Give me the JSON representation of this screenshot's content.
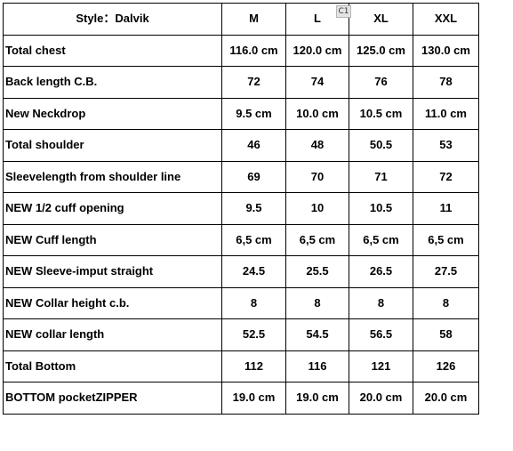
{
  "header": {
    "style_label": "Style：Dalvik",
    "sizes": [
      "M",
      "L",
      "XL",
      "XXL"
    ],
    "comment_marker": "C1"
  },
  "rows": [
    {
      "label": "Total chest",
      "values": [
        "116.0 cm",
        "120.0 cm",
        "125.0 cm",
        "130.0 cm"
      ]
    },
    {
      "label": "Back length C.B.",
      "values": [
        "72",
        "74",
        "76",
        "78"
      ]
    },
    {
      "label": "New Neckdrop",
      "values": [
        "9.5 cm",
        "10.0 cm",
        "10.5 cm",
        "11.0 cm"
      ]
    },
    {
      "label": "Total shoulder",
      "values": [
        "46",
        "48",
        "50.5",
        "53"
      ]
    },
    {
      "label": "Sleevelength from shoulder line",
      "values": [
        "69",
        "70",
        "71",
        "72"
      ]
    },
    {
      "label": "NEW 1/2 cuff opening",
      "values": [
        "9.5",
        "10",
        "10.5",
        "11"
      ]
    },
    {
      "label": "NEW  Cuff length",
      "values": [
        "6,5 cm",
        "6,5 cm",
        "6,5 cm",
        "6,5 cm"
      ]
    },
    {
      "label": "NEW Sleeve-imput straight",
      "values": [
        "24.5",
        "25.5",
        "26.5",
        "27.5"
      ]
    },
    {
      "label": "NEW Collar height c.b.",
      "values": [
        "8",
        "8",
        "8",
        "8"
      ]
    },
    {
      "label": "NEW collar length",
      "values": [
        "52.5",
        "54.5",
        "56.5",
        "58"
      ]
    },
    {
      "label": "Total Bottom",
      "values": [
        "112",
        "116",
        "121",
        "126"
      ]
    },
    {
      "label": "BOTTOM pocketZIPPER",
      "values": [
        "19.0 cm",
        "19.0 cm",
        "20.0 cm",
        "20.0 cm"
      ]
    }
  ]
}
